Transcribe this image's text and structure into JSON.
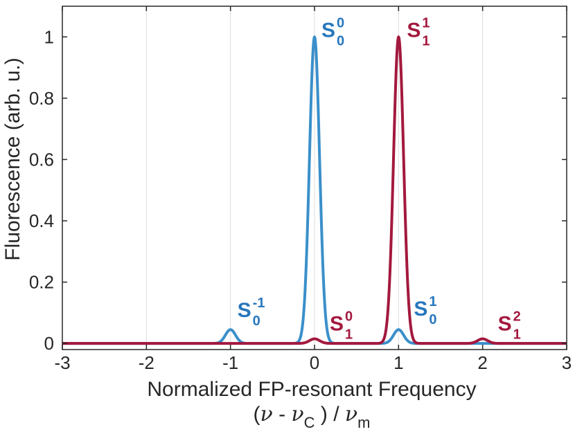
{
  "chart_data": {
    "type": "line",
    "xlabel": "Normalized FP-resonant Frequency",
    "xlabel_formula": {
      "open": "(",
      "nu": "ν",
      "minus": " - ",
      "nu2": "ν",
      "c_sub": "C",
      "mid": " ) / ",
      "nu3": "ν",
      "m_sub": "m"
    },
    "ylabel": "Fluorescence (arb. u.)",
    "xlim": [
      -3,
      3
    ],
    "ylim": [
      -0.02,
      1.1
    ],
    "grid": "vertical",
    "x_ticks": [
      -3,
      -2,
      -1,
      0,
      1,
      2,
      3
    ],
    "x_tick_labels": [
      "-3",
      "-2",
      "-1",
      "0",
      "1",
      "2",
      "3"
    ],
    "y_ticks": [
      0,
      0.2,
      0.4,
      0.6,
      0.8,
      1
    ],
    "y_tick_labels": [
      "0",
      "0.2",
      "0.4",
      "0.6",
      "0.8",
      "1"
    ],
    "series": [
      {
        "color": "#3a8fca",
        "peaks": [
          {
            "center": -1.0,
            "height": 0.045,
            "sigma": 0.06
          },
          {
            "center": 0.0,
            "height": 1.0,
            "sigma": 0.06
          },
          {
            "center": 1.0,
            "height": 0.045,
            "sigma": 0.06
          }
        ]
      },
      {
        "color": "#a3193e",
        "peaks": [
          {
            "center": 0.0,
            "height": 0.015,
            "sigma": 0.06
          },
          {
            "center": 1.0,
            "height": 1.0,
            "sigma": 0.06
          },
          {
            "center": 2.0,
            "height": 0.015,
            "sigma": 0.06
          }
        ]
      }
    ],
    "annotations": [
      {
        "base": "S",
        "sub": "0",
        "sup": "-1",
        "color": "#2777bd",
        "x": -1.0,
        "y": 0.045
      },
      {
        "base": "S",
        "sub": "0",
        "sup": "0",
        "color": "#2777bd",
        "x": 0.0,
        "y": 1.0
      },
      {
        "base": "S",
        "sub": "1",
        "sup": "0",
        "color": "#a3193e",
        "x": 0.0,
        "y": 0.015
      },
      {
        "base": "S",
        "sub": "1",
        "sup": "1",
        "color": "#a3193e",
        "x": 1.0,
        "y": 1.0
      },
      {
        "base": "S",
        "sub": "0",
        "sup": "1",
        "color": "#2777bd",
        "x": 1.0,
        "y": 0.045
      },
      {
        "base": "S",
        "sub": "1",
        "sup": "2",
        "color": "#a3193e",
        "x": 2.0,
        "y": 0.015
      }
    ]
  }
}
